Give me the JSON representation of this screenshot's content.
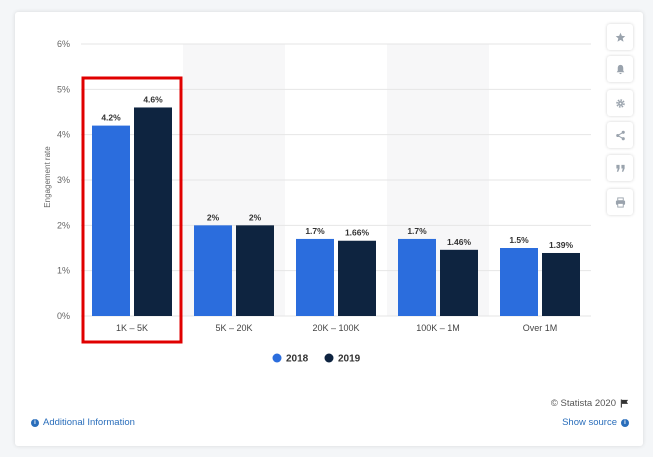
{
  "chart_data": {
    "type": "bar",
    "categories": [
      "1K - 5K",
      "5K - 20K",
      "20K - 100K",
      "100K - 1M",
      "Over 1M"
    ],
    "series": [
      {
        "name": "2018",
        "values": [
          4.2,
          2,
          1.7,
          1.7,
          1.5
        ],
        "labels": [
          "4.2%",
          "2%",
          "1.7%",
          "1.7%",
          "1.5%"
        ],
        "color": "#2b6ddd"
      },
      {
        "name": "2019",
        "values": [
          4.6,
          2,
          1.66,
          1.46,
          1.39
        ],
        "labels": [
          "4.6%",
          "2%",
          "1.66%",
          "1.46%",
          "1.39%"
        ],
        "color": "#0e2440"
      }
    ],
    "ylabel": "Engagement rate",
    "ylim": [
      0,
      6
    ],
    "yticks": [
      0,
      1,
      2,
      3,
      4,
      5,
      6
    ],
    "ytick_labels": [
      "0%",
      "1%",
      "2%",
      "3%",
      "4%",
      "5%",
      "6%"
    ],
    "grid": true,
    "legend_position": "bottom-center",
    "highlighted_category": "1K - 5K",
    "highlight_color": "#e00000"
  },
  "sidebar": {
    "buttons": [
      {
        "name": "star-icon"
      },
      {
        "name": "bell-icon"
      },
      {
        "name": "gear-icon"
      },
      {
        "name": "share-icon"
      },
      {
        "name": "quote-icon"
      },
      {
        "name": "print-icon"
      }
    ]
  },
  "footer": {
    "copyright": "© Statista 2020",
    "additional_info": "Additional Information",
    "show_source": "Show source"
  }
}
